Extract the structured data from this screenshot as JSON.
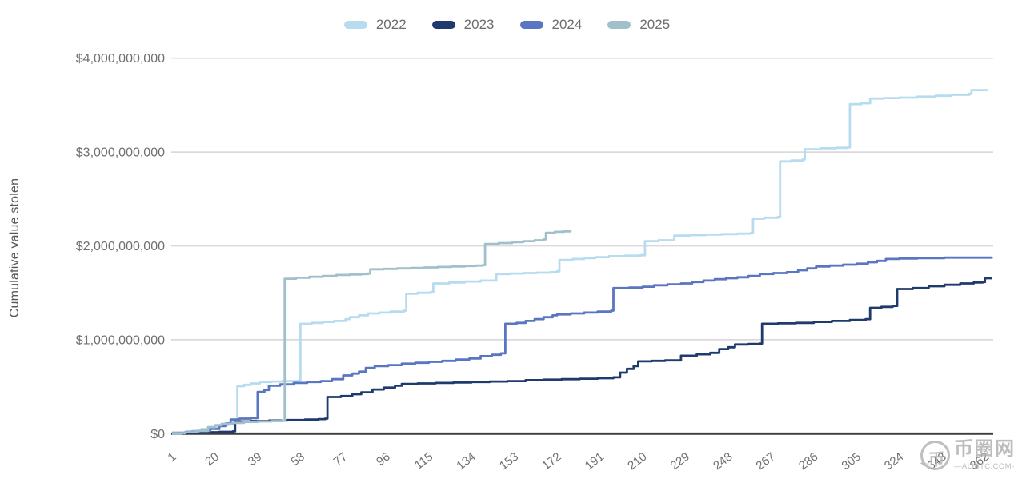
{
  "watermark": {
    "site_name": "币圈网",
    "domain_text": "—ALIBTC.COM—",
    "logo_glyph": "币",
    "star_glyph": "✦",
    "color": "#b5b5b5"
  },
  "chart_data": {
    "type": "line",
    "line_style": "step-after",
    "title": "",
    "xlabel": "",
    "ylabel": "Cumulative value stolen",
    "value_unit": "USD billions",
    "x_domain": [
      1,
      366
    ],
    "y_domain_billions": [
      0,
      4
    ],
    "grid": "horizontal",
    "legend_position": "top",
    "axis_text_color": "#6f6f6f",
    "y_ticks": [
      {
        "value_billions": 0,
        "label": "$0"
      },
      {
        "value_billions": 1,
        "label": "$1,000,000,000"
      },
      {
        "value_billions": 2,
        "label": "$2,000,000,000"
      },
      {
        "value_billions": 3,
        "label": "$3,000,000,000"
      },
      {
        "value_billions": 4,
        "label": "$4,000,000,000"
      }
    ],
    "x_ticks": [
      1,
      20,
      39,
      58,
      77,
      96,
      115,
      134,
      153,
      172,
      191,
      210,
      229,
      248,
      267,
      286,
      305,
      324,
      343,
      362
    ],
    "series": [
      {
        "name": "2022",
        "color": "#b8dcef",
        "points": [
          [
            1,
            0
          ],
          [
            5,
            0.01
          ],
          [
            10,
            0.03
          ],
          [
            14,
            0.05
          ],
          [
            18,
            0.07
          ],
          [
            22,
            0.09
          ],
          [
            26,
            0.1
          ],
          [
            29,
            0.12
          ],
          [
            30,
            0.505
          ],
          [
            33,
            0.52
          ],
          [
            36,
            0.535
          ],
          [
            40,
            0.55
          ],
          [
            45,
            0.555
          ],
          [
            50,
            0.56
          ],
          [
            57,
            0.565
          ],
          [
            58,
            1.17
          ],
          [
            63,
            1.18
          ],
          [
            68,
            1.19
          ],
          [
            73,
            1.2
          ],
          [
            78,
            1.22
          ],
          [
            80,
            1.24
          ],
          [
            84,
            1.26
          ],
          [
            88,
            1.28
          ],
          [
            93,
            1.29
          ],
          [
            98,
            1.3
          ],
          [
            104,
            1.31
          ],
          [
            105,
            1.49
          ],
          [
            110,
            1.5
          ],
          [
            116,
            1.51
          ],
          [
            117,
            1.6
          ],
          [
            124,
            1.61
          ],
          [
            131,
            1.62
          ],
          [
            138,
            1.63
          ],
          [
            145,
            1.7
          ],
          [
            151,
            1.705
          ],
          [
            157,
            1.71
          ],
          [
            163,
            1.715
          ],
          [
            169,
            1.72
          ],
          [
            172,
            1.73
          ],
          [
            173,
            1.85
          ],
          [
            179,
            1.86
          ],
          [
            184,
            1.87
          ],
          [
            189,
            1.88
          ],
          [
            195,
            1.89
          ],
          [
            202,
            1.895
          ],
          [
            209,
            1.9
          ],
          [
            211,
            2.05
          ],
          [
            217,
            2.06
          ],
          [
            224,
            2.11
          ],
          [
            231,
            2.115
          ],
          [
            238,
            2.12
          ],
          [
            245,
            2.125
          ],
          [
            252,
            2.13
          ],
          [
            258,
            2.14
          ],
          [
            259,
            2.29
          ],
          [
            264,
            2.3
          ],
          [
            270,
            2.31
          ],
          [
            271,
            2.9
          ],
          [
            276,
            2.91
          ],
          [
            281,
            2.92
          ],
          [
            282,
            3.03
          ],
          [
            289,
            3.04
          ],
          [
            296,
            3.045
          ],
          [
            301,
            3.05
          ],
          [
            302,
            3.51
          ],
          [
            307,
            3.52
          ],
          [
            311,
            3.57
          ],
          [
            317,
            3.575
          ],
          [
            324,
            3.58
          ],
          [
            332,
            3.59
          ],
          [
            340,
            3.6
          ],
          [
            347,
            3.61
          ],
          [
            355,
            3.62
          ],
          [
            356,
            3.66
          ],
          [
            363,
            3.67
          ]
        ]
      },
      {
        "name": "2023",
        "color": "#1f3b6d",
        "points": [
          [
            1,
            0.005
          ],
          [
            8,
            0.01
          ],
          [
            15,
            0.015
          ],
          [
            22,
            0.02
          ],
          [
            28,
            0.025
          ],
          [
            29,
            0.13
          ],
          [
            36,
            0.135
          ],
          [
            44,
            0.14
          ],
          [
            52,
            0.145
          ],
          [
            60,
            0.15
          ],
          [
            66,
            0.155
          ],
          [
            69,
            0.16
          ],
          [
            70,
            0.39
          ],
          [
            76,
            0.4
          ],
          [
            81,
            0.42
          ],
          [
            85,
            0.44
          ],
          [
            90,
            0.47
          ],
          [
            95,
            0.49
          ],
          [
            100,
            0.51
          ],
          [
            103,
            0.53
          ],
          [
            110,
            0.535
          ],
          [
            118,
            0.54
          ],
          [
            126,
            0.545
          ],
          [
            134,
            0.55
          ],
          [
            142,
            0.555
          ],
          [
            150,
            0.56
          ],
          [
            158,
            0.57
          ],
          [
            166,
            0.575
          ],
          [
            174,
            0.58
          ],
          [
            182,
            0.585
          ],
          [
            190,
            0.59
          ],
          [
            197,
            0.6
          ],
          [
            200,
            0.65
          ],
          [
            203,
            0.69
          ],
          [
            206,
            0.72
          ],
          [
            208,
            0.77
          ],
          [
            214,
            0.775
          ],
          [
            220,
            0.78
          ],
          [
            227,
            0.83
          ],
          [
            234,
            0.845
          ],
          [
            240,
            0.86
          ],
          [
            244,
            0.9
          ],
          [
            248,
            0.92
          ],
          [
            251,
            0.95
          ],
          [
            257,
            0.955
          ],
          [
            262,
            0.96
          ],
          [
            263,
            1.17
          ],
          [
            270,
            1.175
          ],
          [
            278,
            1.18
          ],
          [
            286,
            1.19
          ],
          [
            294,
            1.2
          ],
          [
            302,
            1.21
          ],
          [
            309,
            1.22
          ],
          [
            311,
            1.34
          ],
          [
            316,
            1.35
          ],
          [
            321,
            1.36
          ],
          [
            323,
            1.54
          ],
          [
            330,
            1.55
          ],
          [
            337,
            1.57
          ],
          [
            344,
            1.585
          ],
          [
            351,
            1.6
          ],
          [
            357,
            1.61
          ],
          [
            361,
            1.615
          ],
          [
            362,
            1.655
          ],
          [
            365,
            1.655
          ]
        ]
      },
      {
        "name": "2024",
        "color": "#5a75c2",
        "points": [
          [
            1,
            0.01
          ],
          [
            7,
            0.02
          ],
          [
            13,
            0.03
          ],
          [
            18,
            0.05
          ],
          [
            22,
            0.08
          ],
          [
            25,
            0.11
          ],
          [
            27,
            0.15
          ],
          [
            31,
            0.16
          ],
          [
            36,
            0.165
          ],
          [
            39,
            0.445
          ],
          [
            42,
            0.465
          ],
          [
            44,
            0.51
          ],
          [
            49,
            0.525
          ],
          [
            55,
            0.54
          ],
          [
            61,
            0.55
          ],
          [
            67,
            0.56
          ],
          [
            72,
            0.58
          ],
          [
            77,
            0.62
          ],
          [
            81,
            0.64
          ],
          [
            84,
            0.66
          ],
          [
            87,
            0.7
          ],
          [
            91,
            0.72
          ],
          [
            97,
            0.73
          ],
          [
            103,
            0.745
          ],
          [
            109,
            0.755
          ],
          [
            115,
            0.765
          ],
          [
            121,
            0.775
          ],
          [
            127,
            0.79
          ],
          [
            133,
            0.8
          ],
          [
            138,
            0.825
          ],
          [
            143,
            0.84
          ],
          [
            147,
            0.855
          ],
          [
            149,
            1.17
          ],
          [
            154,
            1.18
          ],
          [
            158,
            1.2
          ],
          [
            162,
            1.22
          ],
          [
            166,
            1.24
          ],
          [
            170,
            1.26
          ],
          [
            172,
            1.27
          ],
          [
            178,
            1.28
          ],
          [
            184,
            1.29
          ],
          [
            190,
            1.3
          ],
          [
            196,
            1.31
          ],
          [
            197,
            1.55
          ],
          [
            204,
            1.555
          ],
          [
            210,
            1.565
          ],
          [
            215,
            1.58
          ],
          [
            221,
            1.59
          ],
          [
            227,
            1.6
          ],
          [
            232,
            1.615
          ],
          [
            237,
            1.63
          ],
          [
            242,
            1.645
          ],
          [
            247,
            1.655
          ],
          [
            252,
            1.665
          ],
          [
            257,
            1.68
          ],
          [
            262,
            1.7
          ],
          [
            268,
            1.71
          ],
          [
            274,
            1.72
          ],
          [
            279,
            1.74
          ],
          [
            283,
            1.76
          ],
          [
            287,
            1.78
          ],
          [
            293,
            1.79
          ],
          [
            299,
            1.8
          ],
          [
            305,
            1.81
          ],
          [
            310,
            1.825
          ],
          [
            314,
            1.84
          ],
          [
            318,
            1.86
          ],
          [
            324,
            1.865
          ],
          [
            332,
            1.87
          ],
          [
            344,
            1.875
          ],
          [
            365,
            1.88
          ]
        ]
      },
      {
        "name": "2025",
        "color": "#a2c0cb",
        "points": [
          [
            1,
            0.005
          ],
          [
            7,
            0.015
          ],
          [
            12,
            0.03
          ],
          [
            17,
            0.07
          ],
          [
            20,
            0.09
          ],
          [
            23,
            0.105
          ],
          [
            28,
            0.115
          ],
          [
            33,
            0.125
          ],
          [
            39,
            0.13
          ],
          [
            45,
            0.135
          ],
          [
            50,
            0.14
          ],
          [
            51,
            1.65
          ],
          [
            56,
            1.66
          ],
          [
            62,
            1.67
          ],
          [
            68,
            1.68
          ],
          [
            74,
            1.69
          ],
          [
            80,
            1.695
          ],
          [
            85,
            1.7
          ],
          [
            88,
            1.705
          ],
          [
            89,
            1.75
          ],
          [
            95,
            1.755
          ],
          [
            101,
            1.76
          ],
          [
            107,
            1.765
          ],
          [
            113,
            1.77
          ],
          [
            119,
            1.775
          ],
          [
            125,
            1.78
          ],
          [
            131,
            1.785
          ],
          [
            136,
            1.79
          ],
          [
            139,
            1.795
          ],
          [
            140,
            2.02
          ],
          [
            146,
            2.03
          ],
          [
            152,
            2.04
          ],
          [
            157,
            2.05
          ],
          [
            162,
            2.06
          ],
          [
            166,
            2.07
          ],
          [
            167,
            2.14
          ],
          [
            171,
            2.15
          ],
          [
            175,
            2.155
          ],
          [
            178,
            2.16
          ]
        ]
      }
    ]
  }
}
